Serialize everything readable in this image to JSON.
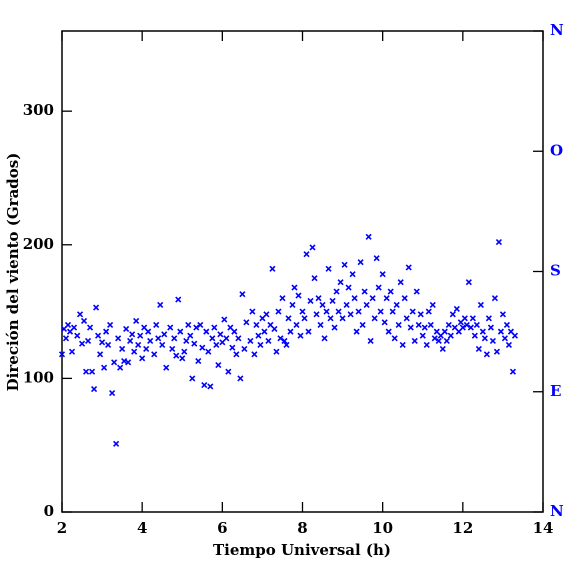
{
  "chart_data": {
    "type": "scatter",
    "x_label": "Tiempo Universal (h)",
    "y_label": "Direción del viento (Grados)",
    "xlim": [
      2,
      14
    ],
    "xticks": [
      2,
      4,
      6,
      8,
      10,
      12,
      14
    ],
    "ylim": [
      0,
      360
    ],
    "yticks": [
      0,
      100,
      200,
      300
    ],
    "y2lim": [
      0,
      360
    ],
    "y2ticks": [
      {
        "value": 0,
        "label": "N"
      },
      {
        "value": 90,
        "label": "E"
      },
      {
        "value": 180,
        "label": "S"
      },
      {
        "value": 270,
        "label": "O"
      },
      {
        "value": 360,
        "label": "N"
      }
    ],
    "color": "#0000ff",
    "x": [
      2.0,
      2.05,
      2.1,
      2.15,
      2.2,
      2.25,
      2.3,
      2.38,
      2.45,
      2.5,
      2.55,
      2.6,
      2.65,
      2.7,
      2.75,
      2.8,
      2.85,
      2.9,
      2.95,
      3.0,
      3.05,
      3.1,
      3.15,
      3.2,
      3.25,
      3.3,
      3.35,
      3.4,
      3.45,
      3.5,
      3.55,
      3.6,
      3.65,
      3.7,
      3.75,
      3.8,
      3.85,
      3.9,
      3.95,
      4.0,
      4.05,
      4.1,
      4.15,
      4.2,
      4.3,
      4.35,
      4.4,
      4.45,
      4.5,
      4.55,
      4.6,
      4.7,
      4.75,
      4.8,
      4.85,
      4.9,
      4.95,
      5.0,
      5.05,
      5.1,
      5.15,
      5.2,
      5.25,
      5.3,
      5.35,
      5.4,
      5.45,
      5.5,
      5.55,
      5.6,
      5.65,
      5.7,
      5.75,
      5.8,
      5.85,
      5.9,
      5.95,
      6.0,
      6.05,
      6.1,
      6.15,
      6.2,
      6.25,
      6.3,
      6.35,
      6.4,
      6.45,
      6.5,
      6.55,
      6.6,
      6.7,
      6.75,
      6.8,
      6.85,
      6.9,
      6.95,
      7.0,
      7.05,
      7.1,
      7.15,
      7.2,
      7.25,
      7.3,
      7.35,
      7.4,
      7.45,
      7.5,
      7.55,
      7.6,
      7.65,
      7.7,
      7.75,
      7.8,
      7.85,
      7.9,
      7.95,
      8.0,
      8.05,
      8.1,
      8.15,
      8.2,
      8.25,
      8.3,
      8.35,
      8.4,
      8.45,
      8.5,
      8.55,
      8.6,
      8.65,
      8.7,
      8.75,
      8.8,
      8.85,
      8.9,
      8.95,
      9.0,
      9.05,
      9.1,
      9.15,
      9.2,
      9.25,
      9.3,
      9.35,
      9.4,
      9.45,
      9.5,
      9.55,
      9.6,
      9.65,
      9.7,
      9.75,
      9.8,
      9.85,
      9.9,
      9.95,
      10.0,
      10.05,
      10.1,
      10.15,
      10.2,
      10.25,
      10.3,
      10.35,
      10.4,
      10.45,
      10.5,
      10.55,
      10.6,
      10.65,
      10.7,
      10.75,
      10.8,
      10.85,
      10.9,
      10.95,
      11.0,
      11.05,
      11.1,
      11.15,
      11.2,
      11.25,
      11.3,
      11.35,
      11.4,
      11.45,
      11.5,
      11.55,
      11.6,
      11.65,
      11.7,
      11.75,
      11.8,
      11.85,
      11.9,
      11.95,
      12.0,
      12.05,
      12.1,
      12.15,
      12.2,
      12.25,
      12.3,
      12.35,
      12.4,
      12.45,
      12.5,
      12.55,
      12.6,
      12.65,
      12.7,
      12.75,
      12.8,
      12.85,
      12.9,
      12.95,
      13.0,
      13.05,
      13.1,
      13.15,
      13.2,
      13.25,
      13.3
    ],
    "y": [
      118,
      137,
      130,
      140,
      135,
      120,
      138,
      132,
      148,
      126,
      143,
      105,
      128,
      138,
      105,
      92,
      153,
      132,
      118,
      127,
      108,
      135,
      125,
      140,
      89,
      112,
      51,
      130,
      108,
      122,
      113,
      137,
      112,
      128,
      133,
      120,
      143,
      125,
      132,
      115,
      138,
      122,
      135,
      128,
      118,
      140,
      130,
      155,
      125,
      133,
      108,
      138,
      122,
      130,
      117,
      159,
      135,
      115,
      120,
      128,
      140,
      132,
      100,
      126,
      138,
      113,
      140,
      123,
      95,
      135,
      120,
      94,
      130,
      138,
      125,
      110,
      133,
      127,
      144,
      130,
      105,
      138,
      123,
      135,
      118,
      130,
      100,
      163,
      122,
      142,
      128,
      150,
      118,
      140,
      132,
      125,
      145,
      135,
      148,
      128,
      140,
      182,
      137,
      120,
      150,
      130,
      160,
      128,
      125,
      145,
      135,
      155,
      168,
      140,
      162,
      132,
      150,
      145,
      193,
      135,
      158,
      198,
      175,
      148,
      160,
      140,
      155,
      130,
      150,
      182,
      145,
      158,
      138,
      165,
      150,
      172,
      145,
      185,
      155,
      168,
      148,
      178,
      160,
      135,
      150,
      187,
      140,
      165,
      155,
      206,
      128,
      160,
      145,
      190,
      168,
      150,
      178,
      142,
      160,
      135,
      165,
      150,
      130,
      155,
      140,
      172,
      125,
      160,
      145,
      183,
      138,
      150,
      128,
      165,
      140,
      148,
      132,
      138,
      125,
      150,
      140,
      155,
      130,
      135,
      128,
      132,
      122,
      135,
      128,
      140,
      132,
      148,
      138,
      152,
      135,
      142,
      138,
      145,
      140,
      172,
      138,
      145,
      132,
      140,
      122,
      155,
      135,
      130,
      118,
      145,
      138,
      128,
      160,
      120,
      202,
      135,
      148,
      130,
      140,
      125,
      135,
      105,
      132
    ]
  }
}
